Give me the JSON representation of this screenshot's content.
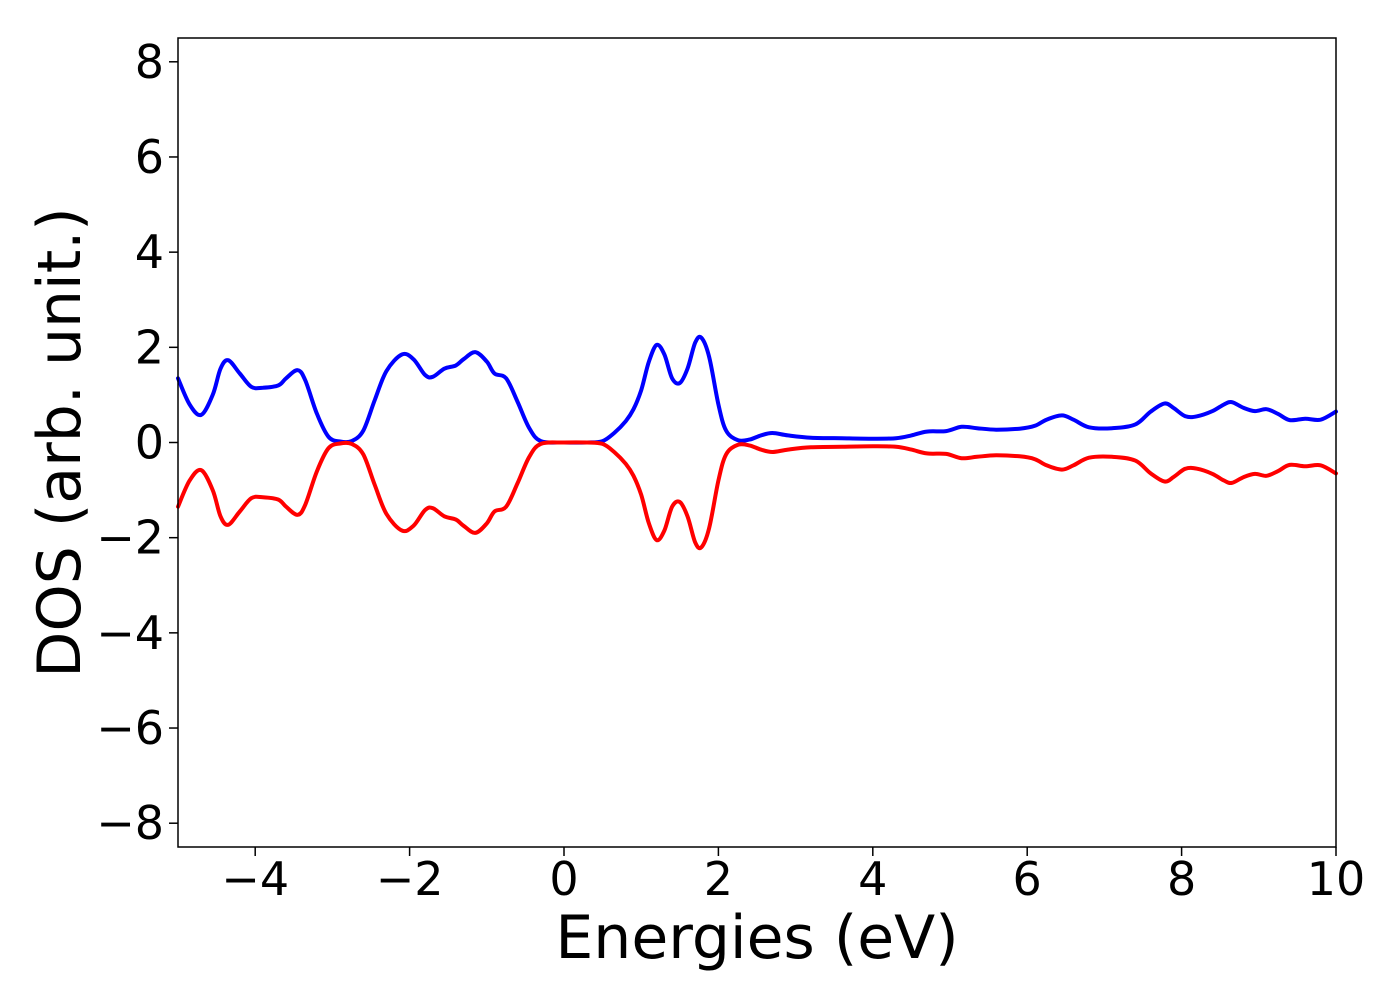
{
  "chart_data": {
    "type": "line",
    "title": "",
    "xlabel": "Energies (eV)",
    "ylabel": "DOS (arb. unit.)",
    "xlim": [
      -5,
      10
    ],
    "ylim": [
      -8.5,
      8.5
    ],
    "xticks": [
      -4,
      -2,
      0,
      2,
      4,
      6,
      8,
      10
    ],
    "xtick_labels": [
      "−4",
      "−2",
      "0",
      "2",
      "4",
      "6",
      "8",
      "10"
    ],
    "yticks": [
      -8,
      -6,
      -4,
      -2,
      0,
      2,
      4,
      6,
      8
    ],
    "ytick_labels": [
      "−8",
      "−6",
      "−4",
      "−2",
      "0",
      "2",
      "4",
      "6",
      "8"
    ],
    "grid": false,
    "series": [
      {
        "name": "spin-up",
        "color": "#0000ff",
        "points": [
          [
            -5.0,
            1.35
          ],
          [
            -4.85,
            0.8
          ],
          [
            -4.7,
            0.58
          ],
          [
            -4.55,
            1.0
          ],
          [
            -4.45,
            1.55
          ],
          [
            -4.35,
            1.73
          ],
          [
            -4.2,
            1.45
          ],
          [
            -4.05,
            1.17
          ],
          [
            -3.9,
            1.15
          ],
          [
            -3.7,
            1.2
          ],
          [
            -3.6,
            1.35
          ],
          [
            -3.45,
            1.52
          ],
          [
            -3.35,
            1.3
          ],
          [
            -3.2,
            0.6
          ],
          [
            -3.05,
            0.12
          ],
          [
            -2.9,
            0.02
          ],
          [
            -2.75,
            0.03
          ],
          [
            -2.6,
            0.25
          ],
          [
            -2.45,
            0.9
          ],
          [
            -2.3,
            1.5
          ],
          [
            -2.1,
            1.85
          ],
          [
            -1.95,
            1.75
          ],
          [
            -1.8,
            1.42
          ],
          [
            -1.7,
            1.38
          ],
          [
            -1.55,
            1.55
          ],
          [
            -1.4,
            1.62
          ],
          [
            -1.3,
            1.75
          ],
          [
            -1.15,
            1.9
          ],
          [
            -1.0,
            1.7
          ],
          [
            -0.9,
            1.45
          ],
          [
            -0.75,
            1.35
          ],
          [
            -0.6,
            0.85
          ],
          [
            -0.45,
            0.3
          ],
          [
            -0.3,
            0.03
          ],
          [
            0.0,
            0.0
          ],
          [
            0.3,
            0.0
          ],
          [
            0.5,
            0.03
          ],
          [
            0.65,
            0.2
          ],
          [
            0.8,
            0.45
          ],
          [
            0.9,
            0.7
          ],
          [
            1.0,
            1.1
          ],
          [
            1.1,
            1.7
          ],
          [
            1.2,
            2.05
          ],
          [
            1.3,
            1.85
          ],
          [
            1.4,
            1.35
          ],
          [
            1.5,
            1.25
          ],
          [
            1.6,
            1.55
          ],
          [
            1.7,
            2.1
          ],
          [
            1.78,
            2.2
          ],
          [
            1.88,
            1.8
          ],
          [
            2.0,
            0.8
          ],
          [
            2.1,
            0.25
          ],
          [
            2.25,
            0.05
          ],
          [
            2.4,
            0.06
          ],
          [
            2.55,
            0.15
          ],
          [
            2.7,
            0.2
          ],
          [
            2.9,
            0.15
          ],
          [
            3.2,
            0.1
          ],
          [
            3.6,
            0.09
          ],
          [
            4.0,
            0.08
          ],
          [
            4.3,
            0.09
          ],
          [
            4.5,
            0.15
          ],
          [
            4.7,
            0.23
          ],
          [
            4.95,
            0.24
          ],
          [
            5.15,
            0.33
          ],
          [
            5.35,
            0.3
          ],
          [
            5.6,
            0.27
          ],
          [
            5.9,
            0.29
          ],
          [
            6.1,
            0.35
          ],
          [
            6.25,
            0.48
          ],
          [
            6.45,
            0.57
          ],
          [
            6.6,
            0.48
          ],
          [
            6.8,
            0.32
          ],
          [
            7.1,
            0.3
          ],
          [
            7.4,
            0.38
          ],
          [
            7.6,
            0.65
          ],
          [
            7.78,
            0.82
          ],
          [
            7.9,
            0.72
          ],
          [
            8.05,
            0.55
          ],
          [
            8.2,
            0.55
          ],
          [
            8.4,
            0.66
          ],
          [
            8.55,
            0.8
          ],
          [
            8.65,
            0.85
          ],
          [
            8.8,
            0.73
          ],
          [
            8.95,
            0.66
          ],
          [
            9.1,
            0.7
          ],
          [
            9.25,
            0.6
          ],
          [
            9.4,
            0.47
          ],
          [
            9.6,
            0.5
          ],
          [
            9.8,
            0.48
          ],
          [
            10.0,
            0.65
          ]
        ]
      },
      {
        "name": "spin-down",
        "color": "#ff0000",
        "points": [
          [
            -5.0,
            -1.35
          ],
          [
            -4.85,
            -0.8
          ],
          [
            -4.7,
            -0.58
          ],
          [
            -4.55,
            -1.0
          ],
          [
            -4.45,
            -1.55
          ],
          [
            -4.35,
            -1.73
          ],
          [
            -4.2,
            -1.45
          ],
          [
            -4.05,
            -1.17
          ],
          [
            -3.9,
            -1.15
          ],
          [
            -3.7,
            -1.2
          ],
          [
            -3.6,
            -1.35
          ],
          [
            -3.45,
            -1.52
          ],
          [
            -3.35,
            -1.3
          ],
          [
            -3.2,
            -0.6
          ],
          [
            -3.05,
            -0.12
          ],
          [
            -2.9,
            -0.02
          ],
          [
            -2.75,
            -0.03
          ],
          [
            -2.6,
            -0.25
          ],
          [
            -2.45,
            -0.9
          ],
          [
            -2.3,
            -1.5
          ],
          [
            -2.1,
            -1.85
          ],
          [
            -1.95,
            -1.75
          ],
          [
            -1.8,
            -1.42
          ],
          [
            -1.7,
            -1.38
          ],
          [
            -1.55,
            -1.55
          ],
          [
            -1.4,
            -1.62
          ],
          [
            -1.3,
            -1.75
          ],
          [
            -1.15,
            -1.9
          ],
          [
            -1.0,
            -1.7
          ],
          [
            -0.9,
            -1.45
          ],
          [
            -0.75,
            -1.35
          ],
          [
            -0.6,
            -0.85
          ],
          [
            -0.45,
            -0.3
          ],
          [
            -0.3,
            -0.03
          ],
          [
            0.0,
            0.0
          ],
          [
            0.3,
            0.0
          ],
          [
            0.5,
            -0.03
          ],
          [
            0.65,
            -0.2
          ],
          [
            0.8,
            -0.45
          ],
          [
            0.9,
            -0.7
          ],
          [
            1.0,
            -1.1
          ],
          [
            1.1,
            -1.7
          ],
          [
            1.2,
            -2.05
          ],
          [
            1.3,
            -1.85
          ],
          [
            1.4,
            -1.35
          ],
          [
            1.5,
            -1.25
          ],
          [
            1.6,
            -1.55
          ],
          [
            1.7,
            -2.1
          ],
          [
            1.78,
            -2.2
          ],
          [
            1.88,
            -1.8
          ],
          [
            2.0,
            -0.8
          ],
          [
            2.1,
            -0.25
          ],
          [
            2.25,
            -0.05
          ],
          [
            2.4,
            -0.06
          ],
          [
            2.55,
            -0.15
          ],
          [
            2.7,
            -0.2
          ],
          [
            2.9,
            -0.15
          ],
          [
            3.2,
            -0.1
          ],
          [
            3.6,
            -0.09
          ],
          [
            4.0,
            -0.08
          ],
          [
            4.3,
            -0.09
          ],
          [
            4.5,
            -0.15
          ],
          [
            4.7,
            -0.23
          ],
          [
            4.95,
            -0.24
          ],
          [
            5.15,
            -0.33
          ],
          [
            5.35,
            -0.3
          ],
          [
            5.6,
            -0.27
          ],
          [
            5.9,
            -0.29
          ],
          [
            6.1,
            -0.35
          ],
          [
            6.25,
            -0.48
          ],
          [
            6.45,
            -0.57
          ],
          [
            6.6,
            -0.48
          ],
          [
            6.8,
            -0.32
          ],
          [
            7.1,
            -0.3
          ],
          [
            7.4,
            -0.38
          ],
          [
            7.6,
            -0.65
          ],
          [
            7.78,
            -0.82
          ],
          [
            7.9,
            -0.72
          ],
          [
            8.05,
            -0.55
          ],
          [
            8.2,
            -0.55
          ],
          [
            8.4,
            -0.66
          ],
          [
            8.55,
            -0.8
          ],
          [
            8.65,
            -0.85
          ],
          [
            8.8,
            -0.73
          ],
          [
            8.95,
            -0.66
          ],
          [
            9.1,
            -0.7
          ],
          [
            9.25,
            -0.6
          ],
          [
            9.4,
            -0.47
          ],
          [
            9.6,
            -0.5
          ],
          [
            9.8,
            -0.48
          ],
          [
            10.0,
            -0.65
          ]
        ]
      }
    ]
  }
}
